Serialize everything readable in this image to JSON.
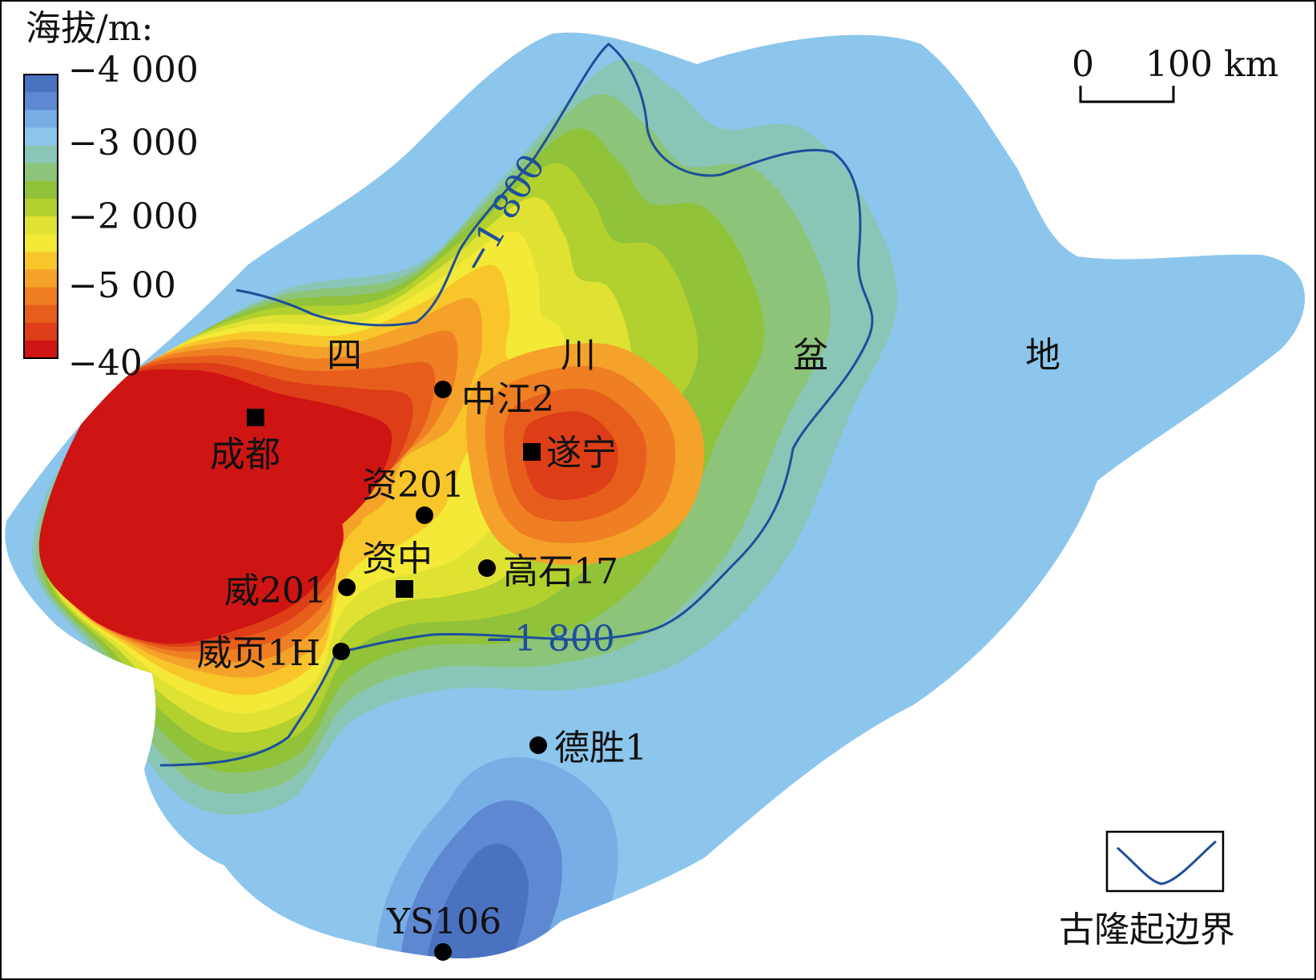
{
  "legend": {
    "title": "海拔/m:",
    "ticks": [
      "−4 000",
      "−3 000",
      "−2 000",
      "−5 00",
      "−40"
    ],
    "colors": [
      "#4a72c0",
      "#5f88d2",
      "#78aee6",
      "#8cc6ec",
      "#8ac6b7",
      "#8cc47a",
      "#90c23a",
      "#b2d02e",
      "#dfe233",
      "#f3e936",
      "#f8c62a",
      "#f4a22a",
      "#ef7f22",
      "#e75e1c",
      "#dd3d17",
      "#cf1414"
    ]
  },
  "scalebar": {
    "start": "0",
    "end": "100 km"
  },
  "inset_legend": {
    "label": "古隆起边界",
    "line_color": "#1e4f9c"
  },
  "contours": [
    {
      "label": "−1 800"
    },
    {
      "label": "−1 800"
    }
  ],
  "region_labels": [
    "四",
    "川",
    "盆",
    "地"
  ],
  "cities": [
    {
      "name": "成都"
    },
    {
      "name": "遂宁"
    },
    {
      "name": "资中"
    }
  ],
  "wells": [
    {
      "name": "中江2"
    },
    {
      "name": "资201"
    },
    {
      "name": "高石17"
    },
    {
      "name": "威201"
    },
    {
      "name": "威页1H"
    },
    {
      "name": "德胜1"
    },
    {
      "name": "YS106"
    }
  ]
}
